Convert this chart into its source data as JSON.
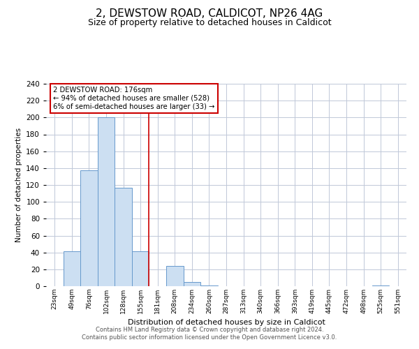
{
  "title": "2, DEWSTOW ROAD, CALDICOT, NP26 4AG",
  "subtitle": "Size of property relative to detached houses in Caldicot",
  "xlabel": "Distribution of detached houses by size in Caldicot",
  "ylabel": "Number of detached properties",
  "bin_labels": [
    "23sqm",
    "49sqm",
    "76sqm",
    "102sqm",
    "128sqm",
    "155sqm",
    "181sqm",
    "208sqm",
    "234sqm",
    "260sqm",
    "287sqm",
    "313sqm",
    "340sqm",
    "366sqm",
    "393sqm",
    "419sqm",
    "445sqm",
    "472sqm",
    "498sqm",
    "525sqm",
    "551sqm"
  ],
  "bar_values": [
    0,
    41,
    137,
    200,
    117,
    41,
    0,
    24,
    5,
    1,
    0,
    0,
    0,
    0,
    0,
    0,
    0,
    0,
    0,
    1,
    0
  ],
  "bar_color": "#ccdff2",
  "bar_edge_color": "#6699cc",
  "vline_color": "#cc0000",
  "ylim": [
    0,
    240
  ],
  "yticks": [
    0,
    20,
    40,
    60,
    80,
    100,
    120,
    140,
    160,
    180,
    200,
    220,
    240
  ],
  "annotation_title": "2 DEWSTOW ROAD: 176sqm",
  "annotation_line1": "← 94% of detached houses are smaller (528)",
  "annotation_line2": "6% of semi-detached houses are larger (33) →",
  "annotation_box_color": "#ffffff",
  "annotation_box_edge_color": "#cc0000",
  "footer_line1": "Contains HM Land Registry data © Crown copyright and database right 2024.",
  "footer_line2": "Contains public sector information licensed under the Open Government Licence v3.0.",
  "background_color": "#ffffff",
  "grid_color": "#c0c8d8",
  "title_fontsize": 11,
  "subtitle_fontsize": 9
}
